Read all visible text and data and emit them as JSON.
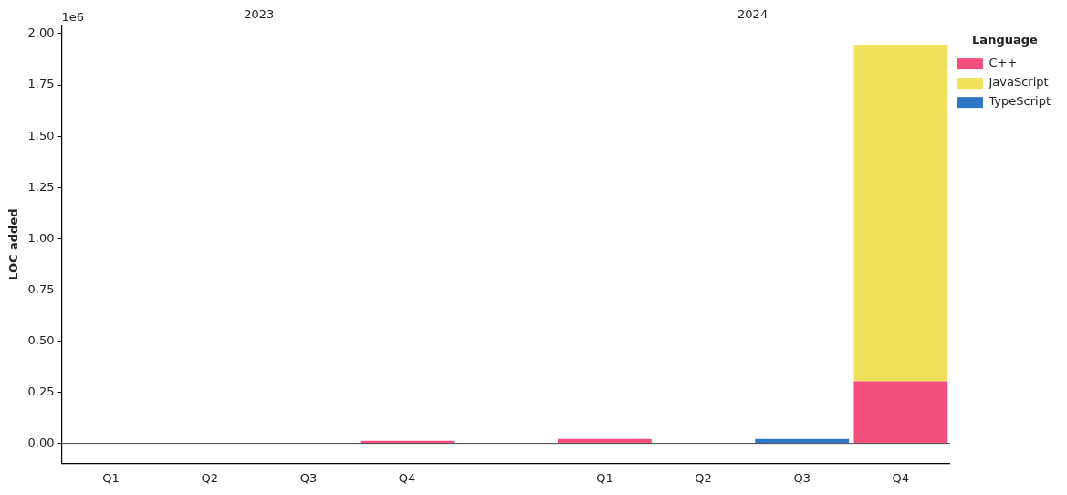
{
  "chart_data": {
    "type": "bar",
    "stacked": true,
    "ylabel": "LOC added",
    "legend_title": "Language",
    "legend": "top right",
    "grid": false,
    "categories": [
      "Q1",
      "Q2",
      "Q3",
      "Q4",
      null,
      "Q1",
      "Q2",
      "Q3",
      "Q4"
    ],
    "series": [
      {
        "name": "C++",
        "color": "#f24e7e",
        "values": [
          0,
          0,
          0,
          0.013,
          null,
          0.022,
          0,
          0,
          0.304
        ]
      },
      {
        "name": "JavaScript",
        "color": "#f0e05a",
        "values": [
          0,
          0,
          0,
          0,
          null,
          0,
          0,
          0,
          1.642
        ]
      },
      {
        "name": "TypeScript",
        "color": "#3076c6",
        "values": [
          0,
          0,
          0,
          0,
          null,
          0,
          0,
          0.022,
          0
        ]
      }
    ],
    "ylim": [
      -0.097,
      2.04
    ],
    "yticks": [
      {
        "value": 0,
        "label": "0.00"
      },
      {
        "value": 0.25,
        "label": "0.25"
      },
      {
        "value": 0.5,
        "label": "0.50"
      },
      {
        "value": 0.75,
        "label": "0.75"
      },
      {
        "value": 1,
        "label": "1.00"
      },
      {
        "value": 1.25,
        "label": "1.25"
      },
      {
        "value": 1.5,
        "label": "1.50"
      },
      {
        "value": 1.75,
        "label": "1.75"
      },
      {
        "value": 2,
        "label": "2.00"
      }
    ],
    "ref_lines": [
      {
        "axis": "y",
        "value": 0,
        "color": "#444444"
      }
    ],
    "annotations": [
      "1e6",
      "2023",
      "2024"
    ]
  }
}
